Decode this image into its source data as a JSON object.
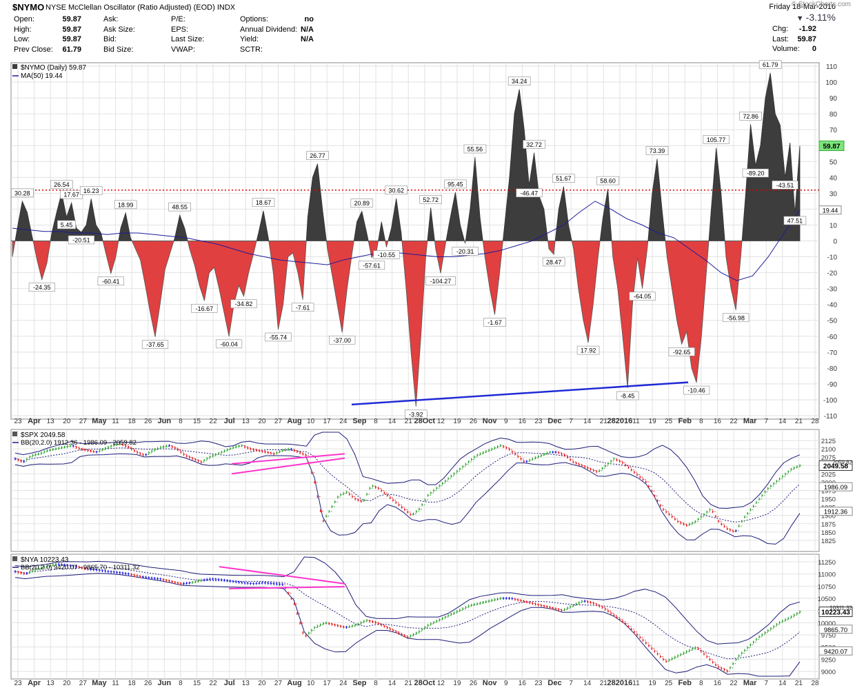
{
  "header": {
    "symbol": "$NYMO",
    "description": "NYSE McClellan Oscillator (Ratio Adjusted) (EOD)",
    "exchange": "INDX",
    "date": "Friday  18-Mar-2016",
    "change_pct": "-3.11%",
    "watermark": "© StockCharts.com",
    "stats": [
      {
        "label": "Open:",
        "value": "59.87"
      },
      {
        "label": "High:",
        "value": "59.87"
      },
      {
        "label": "Low:",
        "value": "59.87"
      },
      {
        "label": "Prev Close:",
        "value": "61.79"
      }
    ],
    "stats2": [
      {
        "label": "Ask:",
        "value": ""
      },
      {
        "label": "Ask Size:",
        "value": ""
      },
      {
        "label": "Bid:",
        "value": ""
      },
      {
        "label": "Bid Size:",
        "value": ""
      }
    ],
    "stats3": [
      {
        "label": "P/E:",
        "value": ""
      },
      {
        "label": "EPS:",
        "value": ""
      },
      {
        "label": "Last Size:",
        "value": ""
      },
      {
        "label": "VWAP:",
        "value": ""
      }
    ],
    "stats4": [
      {
        "label": "Options:",
        "value": "no"
      },
      {
        "label": "Annual Dividend:",
        "value": "N/A"
      },
      {
        "label": "Yield:",
        "value": "N/A"
      },
      {
        "label": "SCTR:",
        "value": ""
      }
    ],
    "stats5": [
      {
        "label": "Chg:",
        "value": "-1.92"
      },
      {
        "label": "Last:",
        "value": "59.87"
      },
      {
        "label": "Volume:",
        "value": "0"
      }
    ]
  },
  "chart_data": [
    {
      "type": "area",
      "legend": [
        "$NYMO (Daily) 59.87",
        "MA(50) 19.44"
      ],
      "ylim": [
        -110,
        110
      ],
      "yticks": [
        110,
        100,
        90,
        80,
        70,
        60,
        50,
        40,
        30,
        20,
        10,
        0,
        -10,
        -20,
        -30,
        -40,
        -50,
        -60,
        -70,
        -80,
        -90,
        -100,
        -110
      ],
      "last_value": "59.87",
      "ma_value": "19.44",
      "reference_line": 32,
      "x_labels": [
        "23",
        "Apr",
        "13",
        "20",
        "27",
        "May",
        "11",
        "18",
        "26",
        "Jun",
        "8",
        "15",
        "22",
        "Jul",
        "13",
        "20",
        "27",
        "Aug",
        "10",
        "17",
        "24",
        "Sep",
        "8",
        "14",
        "21",
        "28Oct",
        "12",
        "19",
        "26",
        "Nov",
        "9",
        "16",
        "23",
        "Dec",
        "7",
        "14",
        "21",
        "282016",
        "11",
        "19",
        "25",
        "Feb",
        "8",
        "16",
        "22",
        "Mar",
        "7",
        "14",
        "21",
        "28"
      ],
      "series": [
        {
          "name": "$NYMO",
          "values": [
            -10,
            8,
            25,
            18,
            3,
            -12,
            -24.35,
            -14,
            5,
            18,
            30.28,
            15,
            24,
            8,
            5.45,
            10,
            26.54,
            10,
            5,
            -8,
            -20.51,
            -10,
            8,
            17.67,
            2,
            -5,
            -12,
            -28,
            -45,
            -60.41,
            -40,
            -18,
            -8,
            2,
            16.23,
            8,
            -5,
            -15,
            -28,
            -37.65,
            -20,
            -16.67,
            -30,
            -45,
            -60.04,
            -40,
            -28,
            -34.82,
            -20,
            -8,
            5,
            18.99,
            2,
            -20,
            -55.74,
            -40,
            -10,
            -7.61,
            -20,
            -37,
            15,
            40,
            48.55,
            20,
            -5,
            -22,
            -40,
            -57.61,
            -30,
            -8,
            12,
            18.67,
            5,
            -10.55,
            -6,
            12,
            -3.92,
            8,
            26.77,
            5,
            -30,
            -70,
            -104.27,
            -60,
            -10,
            20.89,
            -5,
            -20.31,
            -2,
            15,
            30.62,
            10,
            -1.67,
            20,
            52.72,
            15,
            -10,
            -30,
            -46.47,
            -20,
            10,
            40,
            80,
            95.45,
            70,
            35,
            55.56,
            28.47,
            20,
            -5,
            -8.45,
            20,
            34.24,
            10,
            -5,
            -30,
            -50,
            -64.05,
            -40,
            -10,
            15,
            32.72,
            -10,
            -30,
            -60,
            -92.65,
            -40,
            -10.46,
            -30,
            -5,
            30,
            51.67,
            20,
            -10,
            -30,
            -50,
            -65,
            -56.98,
            -80,
            -89.2,
            -60,
            -20,
            20,
            58.6,
            30,
            -10,
            -30,
            -43.51,
            -10,
            30,
            73.39,
            47.51,
            60,
            90,
            105.77,
            80,
            72.86,
            40,
            61.79,
            17.6,
            59.87
          ]
        },
        {
          "name": "MA(50)",
          "values": [
            8,
            7,
            6,
            6,
            5,
            5,
            4,
            5,
            5,
            4,
            3,
            2,
            0,
            -2,
            -5,
            -8,
            -10,
            -12,
            -13,
            -14,
            -15,
            -12,
            -10,
            -8,
            -7,
            -8,
            -9,
            -10,
            -10,
            -9,
            -8,
            -6,
            -3,
            0,
            5,
            10,
            18,
            25,
            20,
            14,
            10,
            5,
            2,
            -5,
            -12,
            -20,
            -25,
            -22,
            -10,
            5,
            19.44
          ]
        }
      ],
      "peak_labels": [
        "25.00",
        "30.28",
        "26.54",
        "17.67",
        "16.23",
        "18.99",
        "48.55",
        "18.67",
        "26.77",
        "20.89",
        "30.62",
        "52.72",
        "95.45",
        "55.56",
        "34.24",
        "32.72",
        "51.67",
        "58.60",
        "73.39",
        "105.77",
        "72.86",
        "61.79"
      ],
      "trough_labels": [
        "-24.35",
        "5.45",
        "-20.51",
        "-60.41",
        "-37.65",
        "-16.67",
        "-60.04",
        "-34.82",
        "-55.74",
        "-7.61",
        "-37.00",
        "-57.61",
        "-10.55",
        "-3.92",
        "-104.27",
        "-20.31",
        "-1.67",
        "-46.47",
        "28.47",
        "17.92",
        "-8.45",
        "-64.05",
        "-92.65",
        "-10.46",
        "-56.98",
        "-89.20",
        "-43.51",
        "47.51",
        "17.60"
      ]
    },
    {
      "type": "ohlc",
      "legend": [
        "$SPX 2049.58",
        "BB(20,2.0) 1912.36 - 1986.09 - 2059.82"
      ],
      "ylim": [
        1800,
        2150
      ],
      "yticks": [
        2125,
        2100,
        2075,
        2050,
        2025,
        2000,
        1975,
        1950,
        1925,
        1900,
        1875,
        1850,
        1825
      ],
      "last_value": "2049.58",
      "band_values": [
        "2059.82",
        "1986.09",
        "1912.36"
      ],
      "series": [
        {
          "name": "$SPX",
          "values": [
            2070,
            2060,
            2080,
            2085,
            2095,
            2100,
            2105,
            2110,
            2100,
            2095,
            2090,
            2100,
            2110,
            2115,
            2105,
            2090,
            2080,
            2095,
            2105,
            2110,
            2100,
            2080,
            2070,
            2060,
            2075,
            2085,
            2095,
            2105,
            2110,
            2100,
            2095,
            2090,
            2085,
            2095,
            2100,
            2090,
            2080,
            2000,
            1880,
            1920,
            1960,
            1970,
            1950,
            1940,
            1990,
            1980,
            1960,
            1940,
            1920,
            1900,
            1920,
            1960,
            1980,
            2000,
            2020,
            2040,
            2060,
            2080,
            2090,
            2100,
            2110,
            2100,
            2080,
            2060,
            2070,
            2080,
            2090,
            2090,
            2080,
            2060,
            2050,
            2040,
            2030,
            2050,
            2070,
            2060,
            2040,
            2020,
            2000,
            1960,
            1920,
            1900,
            1880,
            1870,
            1880,
            1900,
            1920,
            1880,
            1860,
            1850,
            1890,
            1920,
            1950,
            1980,
            2000,
            2020,
            2040,
            2049.58
          ]
        }
      ]
    },
    {
      "type": "ohlc",
      "legend": [
        "$NYA 10223.43",
        "BB(20,2.0) 9420.07 - 9865.70 - 10311.32"
      ],
      "ylim": [
        8900,
        11350
      ],
      "yticks": [
        11250,
        11000,
        10750,
        10500,
        10250,
        10000,
        9750,
        9500,
        9250,
        9000
      ],
      "last_value": "10223.43",
      "band_values": [
        "10311.32",
        "9865.70",
        "9420.07"
      ],
      "series": [
        {
          "name": "$NYA",
          "values": [
            11050,
            11000,
            11100,
            11150,
            11200,
            11180,
            11150,
            11100,
            11080,
            11050,
            11030,
            11000,
            10950,
            10920,
            10900,
            10850,
            10800,
            10820,
            10870,
            10900,
            10880,
            10850,
            10820,
            10800,
            10820,
            10800,
            10780,
            10400,
            9700,
            9900,
            10000,
            9950,
            9900,
            9950,
            10050,
            10000,
            9900,
            9800,
            9700,
            9800,
            9950,
            10050,
            10150,
            10250,
            10350,
            10400,
            10450,
            10500,
            10500,
            10450,
            10400,
            10350,
            10300,
            10250,
            10350,
            10450,
            10400,
            10300,
            10150,
            10000,
            9800,
            9600,
            9400,
            9200,
            9300,
            9400,
            9500,
            9300,
            9100,
            9000,
            9300,
            9500,
            9700,
            9850,
            10000,
            10100,
            10223.43
          ]
        }
      ]
    }
  ],
  "colors": {
    "up": "#2ca02c",
    "down": "#e41a1c",
    "neutral": "#1f1fdf",
    "ma": "#1c1c99",
    "bb": "#1c1c7a",
    "trend": "#1f2ad6",
    "triangle": "#ff33cc",
    "pos_fill": "#3d3d3d",
    "neg_fill": "#e04040"
  }
}
